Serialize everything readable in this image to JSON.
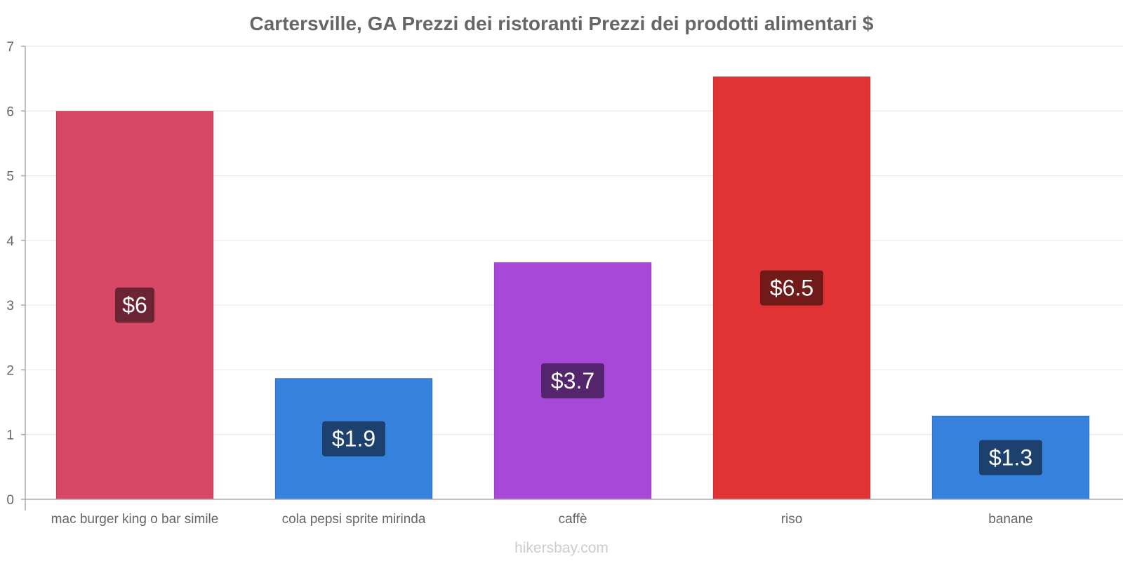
{
  "chart_data": {
    "type": "bar",
    "title": "Cartersville, GA Prezzi dei ristoranti Prezzi dei prodotti alimentari $",
    "categories": [
      "mac burger king o bar simile",
      "cola pepsi sprite mirinda",
      "caffè",
      "riso",
      "banane"
    ],
    "values": [
      6,
      1.87,
      3.66,
      6.53,
      1.29
    ],
    "value_labels": [
      "$6",
      "$1.9",
      "$3.7",
      "$6.5",
      "$1.3"
    ],
    "bar_colors": [
      "#d64865",
      "#3581dc",
      "#a748d8",
      "#e03434",
      "#3581dc"
    ],
    "label_colors": [
      "#6b2433",
      "#1c416e",
      "#54246c",
      "#701a1a",
      "#1c416e"
    ],
    "ylim": [
      0,
      7
    ],
    "yticks": [
      0,
      1,
      2,
      3,
      4,
      5,
      6,
      7
    ],
    "xlabel": "",
    "ylabel": "",
    "grid": true
  },
  "watermark": "hikersbay.com"
}
